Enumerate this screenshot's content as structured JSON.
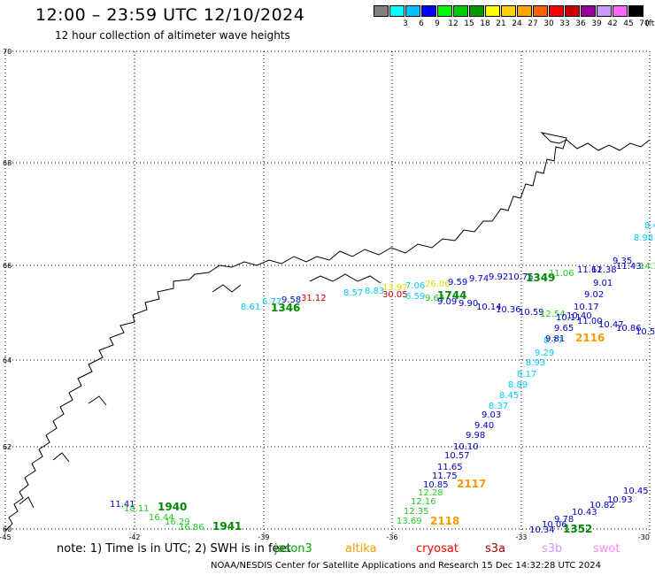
{
  "title": "12:00 – 23:59 UTC 12/10/2024",
  "subtitle": "12 hour collection of altimeter wave heights",
  "legend": {
    "unit": "(ft)",
    "bins": [
      {
        "label": "",
        "color": "#808080"
      },
      {
        "label": "3",
        "color": "#00ffff"
      },
      {
        "label": "6",
        "color": "#00c0ff"
      },
      {
        "label": "9",
        "color": "#0000ff"
      },
      {
        "label": "12",
        "color": "#00ff00"
      },
      {
        "label": "15",
        "color": "#00cc00"
      },
      {
        "label": "18",
        "color": "#009900"
      },
      {
        "label": "21",
        "color": "#ffff00"
      },
      {
        "label": "24",
        "color": "#ffd000"
      },
      {
        "label": "27",
        "color": "#ffa500"
      },
      {
        "label": "30",
        "color": "#ff6000"
      },
      {
        "label": "33",
        "color": "#ff0000"
      },
      {
        "label": "36",
        "color": "#cc0000"
      },
      {
        "label": "39",
        "color": "#990099"
      },
      {
        "label": "42",
        "color": "#cc99ff"
      },
      {
        "label": "45",
        "color": "#ff66ff"
      },
      {
        "label": "70",
        "color": "#000000"
      }
    ]
  },
  "axes": {
    "lat_ticks": [
      "70",
      "68",
      "66",
      "64",
      "62",
      "60"
    ],
    "lon_ticks": [
      "-45",
      "-42",
      "-39",
      "-36",
      "-33",
      "-30"
    ]
  },
  "note": "note:  1) Time is in UTC;  2) SWH is in feet",
  "satellites": [
    {
      "name": "jason3",
      "color": "#00aa00"
    },
    {
      "name": "altika",
      "color": "#ff9900"
    },
    {
      "name": "cryosat",
      "color": "#ff0000"
    },
    {
      "name": "s3a",
      "color": "#aa0000"
    },
    {
      "name": "s3b",
      "color": "#cc99ff"
    },
    {
      "name": "swot",
      "color": "#ff88ee"
    }
  ],
  "footer": "NOAA/NESDIS Center for Satellite Applications and Research    15 Dec 14:32:28 UTC 2024",
  "colors": {
    "cyan": "#00c8ff",
    "blue": "#0000cc",
    "green": "#22cc22",
    "dark_green": "#008800",
    "orange": "#ff9900",
    "red": "#cc0000",
    "yellow": "#dddd00"
  },
  "wave_labels": [
    {
      "text": "8.61",
      "color": "#00c8ff"
    },
    {
      "text": "6.77",
      "color": "#00c8ff"
    },
    {
      "text": "9.58",
      "color": "#0000cc"
    },
    {
      "text": "31.12",
      "color": "#cc0000"
    },
    {
      "text": "1346",
      "color": "#008800",
      "time": true
    },
    {
      "text": "8.57",
      "color": "#00c8ff"
    },
    {
      "text": "8.83",
      "color": "#00c8ff"
    },
    {
      "text": "13.97",
      "color": "#dddd00"
    },
    {
      "text": "30.05",
      "color": "#cc0000"
    },
    {
      "text": "7.06",
      "color": "#00c8ff"
    },
    {
      "text": "6.59",
      "color": "#00c8ff"
    },
    {
      "text": "26.06",
      "color": "#dddd00"
    },
    {
      "text": "9.63",
      "color": "#22cc22"
    },
    {
      "text": "1744",
      "color": "#008800",
      "time": true
    },
    {
      "text": "9.09",
      "color": "#0000cc"
    },
    {
      "text": "9.59",
      "color": "#0000cc"
    },
    {
      "text": "9.74",
      "color": "#0000cc"
    },
    {
      "text": "9.92",
      "color": "#0000cc"
    },
    {
      "text": "9.90",
      "color": "#0000cc"
    },
    {
      "text": "10.14",
      "color": "#0000cc"
    },
    {
      "text": "10.75",
      "color": "#0000cc"
    },
    {
      "text": "1349",
      "color": "#008800",
      "time": true
    },
    {
      "text": "11.06",
      "color": "#22cc22"
    },
    {
      "text": "10.36",
      "color": "#0000cc"
    },
    {
      "text": "10.59",
      "color": "#0000cc"
    },
    {
      "text": "12.54",
      "color": "#22cc22"
    },
    {
      "text": "11.61",
      "color": "#0000cc"
    },
    {
      "text": "12.38",
      "color": "#0000cc"
    },
    {
      "text": "11.43",
      "color": "#0000cc"
    },
    {
      "text": "14.3",
      "color": "#22cc22"
    },
    {
      "text": "9.35",
      "color": "#0000cc"
    },
    {
      "text": "9.01",
      "color": "#0000cc"
    },
    {
      "text": "9.02",
      "color": "#0000cc"
    },
    {
      "text": "10.17",
      "color": "#0000cc"
    },
    {
      "text": "10.40",
      "color": "#0000cc"
    },
    {
      "text": "10.11",
      "color": "#0000cc"
    },
    {
      "text": "11.00",
      "color": "#0000cc"
    },
    {
      "text": "10.47",
      "color": "#0000cc"
    },
    {
      "text": "10.86",
      "color": "#0000cc"
    },
    {
      "text": "10.5",
      "color": "#0000cc"
    },
    {
      "text": "9.65",
      "color": "#0000cc"
    },
    {
      "text": "8.77",
      "color": "#00c8ff"
    },
    {
      "text": "9.81",
      "color": "#0000cc"
    },
    {
      "text": "2116",
      "color": "#ff9900",
      "time": true
    },
    {
      "text": "8.4",
      "color": "#00c8ff"
    },
    {
      "text": "8.98",
      "color": "#00c8ff"
    },
    {
      "text": "9.29",
      "color": "#00c8ff"
    },
    {
      "text": "8.93",
      "color": "#00c8ff"
    },
    {
      "text": "8.17",
      "color": "#00c8ff"
    },
    {
      "text": "8.89",
      "color": "#00c8ff"
    },
    {
      "text": "8.45",
      "color": "#00c8ff"
    },
    {
      "text": "8.37",
      "color": "#00c8ff"
    },
    {
      "text": "9.03",
      "color": "#0000cc"
    },
    {
      "text": "9.40",
      "color": "#0000cc"
    },
    {
      "text": "9.98",
      "color": "#0000cc"
    },
    {
      "text": "10.10",
      "color": "#0000cc"
    },
    {
      "text": "10.57",
      "color": "#0000cc"
    },
    {
      "text": "11.65",
      "color": "#0000cc"
    },
    {
      "text": "11.75",
      "color": "#0000cc"
    },
    {
      "text": "10.85",
      "color": "#0000cc"
    },
    {
      "text": "2117",
      "color": "#ff9900",
      "time": true
    },
    {
      "text": "12.28",
      "color": "#22cc22"
    },
    {
      "text": "12.16",
      "color": "#22cc22"
    },
    {
      "text": "12.35",
      "color": "#22cc22"
    },
    {
      "text": "13.69",
      "color": "#22cc22"
    },
    {
      "text": "2118",
      "color": "#ff9900",
      "time": true
    },
    {
      "text": "11.41",
      "color": "#0000cc"
    },
    {
      "text": "18.11",
      "color": "#22cc22"
    },
    {
      "text": "1940",
      "color": "#008800",
      "time": true
    },
    {
      "text": "16.44",
      "color": "#22cc22"
    },
    {
      "text": "16.29",
      "color": "#22cc22"
    },
    {
      "text": "16.86",
      "color": "#22cc22"
    },
    {
      "text": "1941",
      "color": "#008800",
      "time": true
    },
    {
      "text": "10.34",
      "color": "#0000cc"
    },
    {
      "text": "10.06",
      "color": "#0000cc"
    },
    {
      "text": "1352",
      "color": "#008800",
      "time": true
    },
    {
      "text": "9.78",
      "color": "#0000cc"
    },
    {
      "text": "10.43",
      "color": "#0000cc"
    },
    {
      "text": "10.82",
      "color": "#0000cc"
    },
    {
      "text": "10.93",
      "color": "#0000cc"
    },
    {
      "text": "10.45",
      "color": "#0000cc"
    }
  ]
}
